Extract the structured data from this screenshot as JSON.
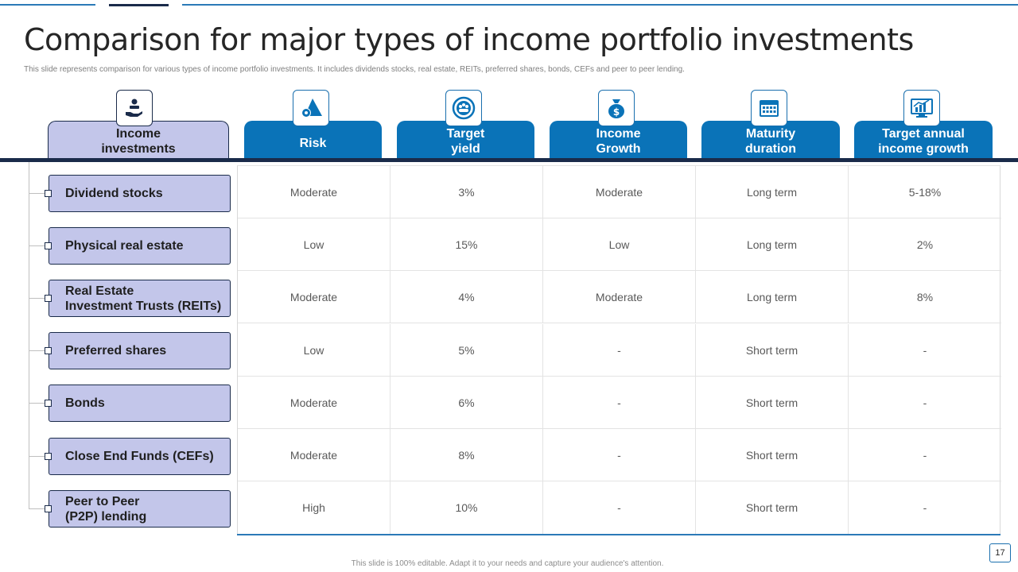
{
  "title": "Comparison for major types of income portfolio investments",
  "subtitle": "This slide represents comparison for various types of income portfolio investments. It includes dividends stocks, real estate, REITs,  preferred shares, bonds, CEFs and peer to peer lending.",
  "colors": {
    "header_blue": "#0a73b8",
    "label_lavender": "#c3c6ea",
    "navy": "#1a2b4a",
    "accent_line": "#2b7ab8"
  },
  "headers": [
    {
      "label": "Income\ninvestments",
      "icon": "hand-money-icon"
    },
    {
      "label": "Risk",
      "icon": "gear-triangle-icon"
    },
    {
      "label": "Target\nyield",
      "icon": "target-people-icon"
    },
    {
      "label": "Income\nGrowth",
      "icon": "money-bag-icon"
    },
    {
      "label": "Maturity\nduration",
      "icon": "calendar-icon"
    },
    {
      "label": "Target annual\nincome growth",
      "icon": "growth-chart-monitor-icon"
    }
  ],
  "rows": [
    {
      "label": "Dividend stocks",
      "cells": [
        "Moderate",
        "3%",
        "Moderate",
        "Long term",
        "5-18%"
      ]
    },
    {
      "label": "Physical real estate",
      "cells": [
        "Low",
        "15%",
        "Low",
        "Long term",
        "2%"
      ]
    },
    {
      "label": "Real Estate\nInvestment Trusts (REITs)",
      "cells": [
        "Moderate",
        "4%",
        "Moderate",
        "Long term",
        "8%"
      ]
    },
    {
      "label": "Preferred shares",
      "cells": [
        "Low",
        "5%",
        "-",
        "Short term",
        "-"
      ]
    },
    {
      "label": "Bonds",
      "cells": [
        "Moderate",
        "6%",
        "-",
        "Short term",
        "-"
      ]
    },
    {
      "label": "Close End Funds (CEFs)",
      "cells": [
        "Moderate",
        "8%",
        "-",
        "Short term",
        "-"
      ]
    },
    {
      "label": "Peer to Peer\n(P2P) lending",
      "cells": [
        "High",
        "10%",
        "-",
        "Short term",
        "-"
      ]
    }
  ],
  "footer": "This slide is 100% editable. Adapt it to your needs and capture your audience's attention.",
  "page_number": "17"
}
